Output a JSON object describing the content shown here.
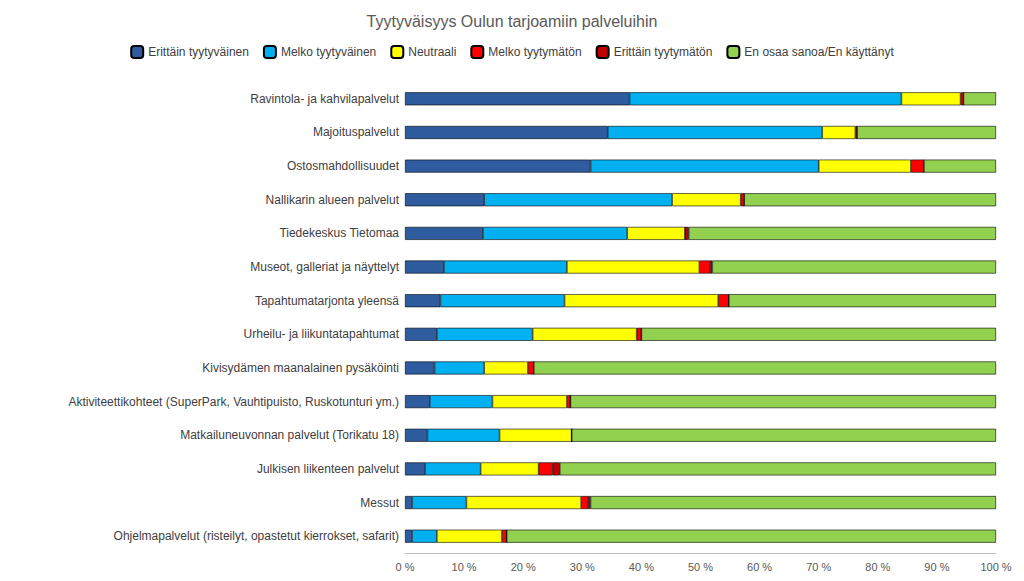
{
  "chart_data": {
    "type": "bar",
    "orientation": "horizontal",
    "stacked": true,
    "grid": false,
    "legend": "top",
    "title": "Tyytyväisyys Oulun tarjoamiin palveluihin",
    "categories": [
      "Ravintola- ja kahvilapalvelut",
      "Majoituspalvelut",
      "Ostosmahdollisuudet",
      "Nallikarin alueen palvelut",
      "Tiedekeskus Tietomaa",
      "Museot, galleriat ja näyttelyt",
      "Tapahtumatarjonta yleensä",
      "Urheilu- ja liikuntatapahtumat",
      "Kivisydämen maanalainen pysäköinti",
      "Aktiviteettikohteet (SuperPark, Vauhtipuisto, Ruskotunturi ym.)",
      "Matkailuneuvonnan palvelut (Torikatu 18)",
      "Julkisen liikenteen palvelut",
      "Messut",
      "Ohjelmapalvelut (risteilyt, opastetut kierrokset, safarit)"
    ],
    "series": [
      {
        "name": "Erittäin tyytyväinen",
        "color": "#2e5c9e",
        "values": [
          38,
          34.3,
          31.4,
          13.4,
          13.2,
          6.6,
          6,
          5.4,
          5,
          4.2,
          3.8,
          3.4,
          1.2,
          1.2
        ]
      },
      {
        "name": "Melko tyytyväinen",
        "color": "#00b0f0",
        "values": [
          46,
          36.3,
          38.6,
          31.8,
          24.4,
          20.8,
          21,
          16.2,
          8.4,
          10.6,
          12.2,
          9.4,
          9.2,
          4.2
        ]
      },
      {
        "name": "Neutraali",
        "color": "#ffff00",
        "values": [
          10,
          5.6,
          15.6,
          11.6,
          9.8,
          22.4,
          26,
          17.6,
          7.4,
          12.6,
          12.2,
          9.8,
          19.4,
          11
        ]
      },
      {
        "name": "Melko tyytymätön",
        "color": "#ff0000",
        "values": [
          0.5,
          0.3,
          2.2,
          0.6,
          0,
          1.8,
          1.8,
          0.8,
          1,
          0.6,
          0,
          2.4,
          1.2,
          0.8
        ]
      },
      {
        "name": "Erittäin tyytymätön",
        "color": "#c00000",
        "values": [
          0,
          0,
          0,
          0,
          0.6,
          0.4,
          0,
          0,
          0,
          0,
          0,
          1.2,
          0.4,
          0
        ]
      },
      {
        "name": "En osaa sanoa/En käyttänyt",
        "color": "#92d050",
        "values": [
          5.5,
          23.5,
          12.2,
          42.6,
          52,
          48,
          45.2,
          60,
          78.2,
          72,
          71.8,
          73.8,
          68.6,
          82.8
        ]
      }
    ],
    "xlim": [
      0,
      100
    ],
    "xticks": [
      {
        "value": 0,
        "label": "0 %"
      },
      {
        "value": 10,
        "label": "10 %"
      },
      {
        "value": 20,
        "label": "20 %"
      },
      {
        "value": 30,
        "label": "30 %"
      },
      {
        "value": 40,
        "label": "40 %"
      },
      {
        "value": 50,
        "label": "50 %"
      },
      {
        "value": 60,
        "label": "60 %"
      },
      {
        "value": 70,
        "label": "70 %"
      },
      {
        "value": 80,
        "label": "80 %"
      },
      {
        "value": 90,
        "label": "90 %"
      },
      {
        "value": 100,
        "label": "100 %"
      }
    ]
  }
}
